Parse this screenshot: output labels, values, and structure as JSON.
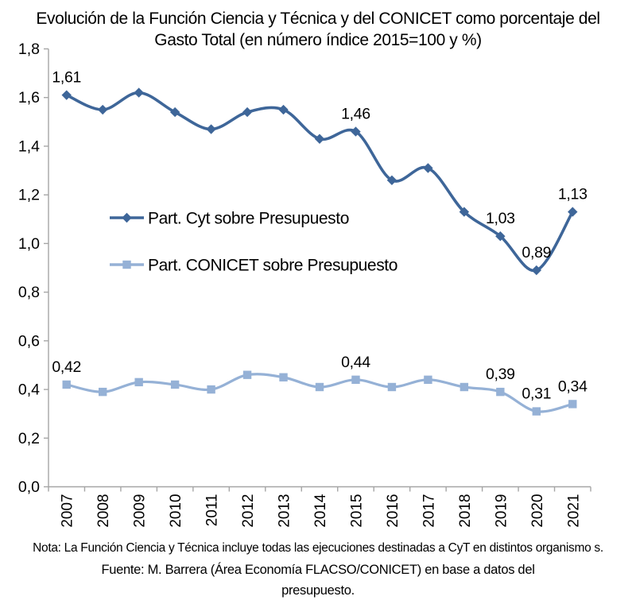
{
  "page": {
    "background": "#ffffff"
  },
  "chart_data": {
    "type": "line",
    "title": "Evolución de la Función Ciencia y Técnica y del CONICET como porcentaje del Gasto Total (en número índice 2015=100 y %)",
    "categories": [
      "2007",
      "2008",
      "2009",
      "2010",
      "2011",
      "2012",
      "2013",
      "2014",
      "2015",
      "2016",
      "2017",
      "2018",
      "2019",
      "2020",
      "2021"
    ],
    "series": [
      {
        "name": "Part. Cyt sobre Presupuesto",
        "marker": "diamond",
        "color": "#3E6699",
        "values": [
          1.61,
          1.55,
          1.62,
          1.54,
          1.47,
          1.54,
          1.55,
          1.43,
          1.46,
          1.26,
          1.31,
          1.13,
          1.03,
          0.89,
          1.13
        ]
      },
      {
        "name": "Part. CONICET sobre Presupuesto",
        "marker": "square",
        "color": "#95B1D6",
        "values": [
          0.42,
          0.39,
          0.43,
          0.42,
          0.4,
          0.46,
          0.45,
          0.41,
          0.44,
          0.41,
          0.44,
          0.41,
          0.39,
          0.31,
          0.34
        ]
      }
    ],
    "point_labels": [
      {
        "series": 0,
        "category": "2007",
        "text": "1,61"
      },
      {
        "series": 0,
        "category": "2015",
        "text": "1,46"
      },
      {
        "series": 0,
        "category": "2019",
        "text": "1,03"
      },
      {
        "series": 0,
        "category": "2020",
        "text": "0,89"
      },
      {
        "series": 0,
        "category": "2021",
        "text": "1,13"
      },
      {
        "series": 1,
        "category": "2007",
        "text": "0,42"
      },
      {
        "series": 1,
        "category": "2015",
        "text": "0,44"
      },
      {
        "series": 1,
        "category": "2019",
        "text": "0,39"
      },
      {
        "series": 1,
        "category": "2020",
        "text": "0,31"
      },
      {
        "series": 1,
        "category": "2021",
        "text": "0,34"
      }
    ],
    "y_ticks": [
      "0,0",
      "0,2",
      "0,4",
      "0,6",
      "0,8",
      "1,0",
      "1,2",
      "1,4",
      "1,6",
      "1,8"
    ],
    "ylim": [
      0,
      1.8
    ],
    "x_label_rotation": -90,
    "grid": false,
    "smoothed_lines": true,
    "legend_position": "inside-left",
    "axis_color": "#A6A6A6",
    "text_color": "#000000"
  },
  "footer": {
    "nota": "Nota: La Función Ciencia y Técnica incluye todas las ejecuciones destinadas a CyT en distintos organismo s.",
    "fuente": "Fuente: M. Barrera (Área Economía FLACSO/CONICET) en base a datos del presupuesto."
  }
}
